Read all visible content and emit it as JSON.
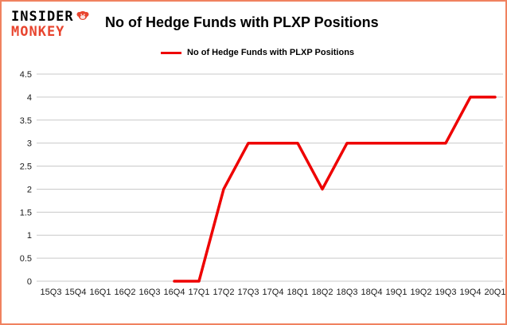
{
  "logo": {
    "line1": "INSIDER",
    "line2": "MONKEY"
  },
  "title": "No of Hedge Funds with PLXP Positions",
  "legend": {
    "label": "No of Hedge Funds with PLXP Positions"
  },
  "colors": {
    "line": "#ee0000",
    "grid": "#c9c9c9",
    "border": "#f0825f",
    "logo_red": "#e8442e",
    "text": "#000000",
    "background": "#ffffff"
  },
  "chart_data": {
    "type": "line",
    "title": "No of Hedge Funds with PLXP Positions",
    "categories": [
      "15Q3",
      "15Q4",
      "16Q1",
      "16Q2",
      "16Q3",
      "16Q4",
      "17Q1",
      "17Q2",
      "17Q3",
      "17Q4",
      "18Q1",
      "18Q2",
      "18Q3",
      "18Q4",
      "19Q1",
      "19Q2",
      "19Q3",
      "19Q4",
      "20Q1"
    ],
    "series": [
      {
        "name": "No of Hedge Funds with PLXP Positions",
        "values": [
          null,
          null,
          null,
          null,
          null,
          0,
          0,
          2,
          3,
          3,
          3,
          2,
          3,
          3,
          3,
          3,
          3,
          4,
          4
        ]
      }
    ],
    "xlabel": "",
    "ylabel": "",
    "ylim": [
      0,
      4.5
    ],
    "yticks": [
      0,
      0.5,
      1,
      1.5,
      2,
      2.5,
      3,
      3.5,
      4,
      4.5
    ],
    "grid": true,
    "legend_position": "top"
  }
}
